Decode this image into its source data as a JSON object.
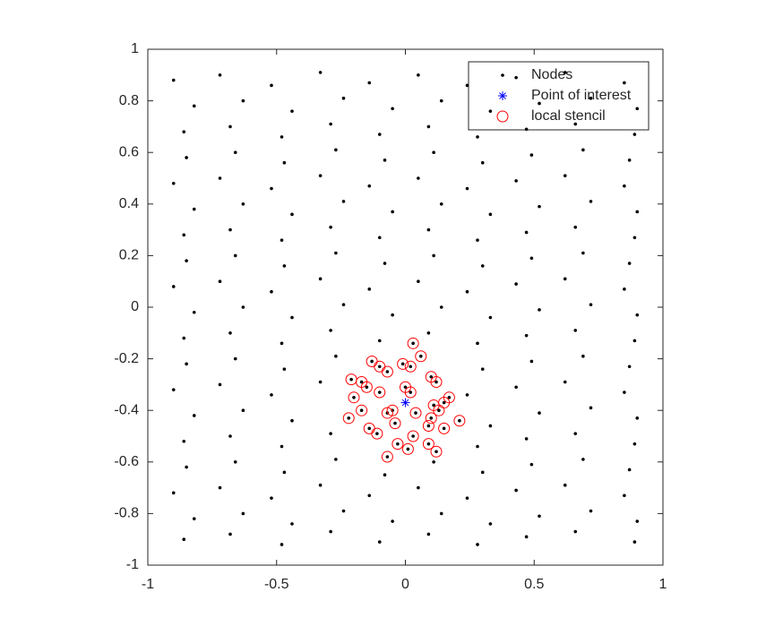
{
  "chart_data": {
    "type": "scatter",
    "xlim": [
      -1,
      1
    ],
    "xticks": [
      -1,
      -0.5,
      0,
      0.5,
      1
    ],
    "ylim": [
      -1,
      1
    ],
    "yticks": [
      -1,
      -0.8,
      -0.6,
      -0.4,
      -0.2,
      0,
      0.2,
      0.4,
      0.6,
      0.8,
      1
    ],
    "legend": "upper right",
    "series": [
      {
        "name": "Nodes",
        "color": "#000000",
        "marker": "dot",
        "x": [
          -0.9,
          -0.72,
          -0.52,
          -0.33,
          -0.14,
          0.05,
          0.24,
          0.43,
          0.62,
          0.85,
          -0.82,
          -0.63,
          -0.44,
          -0.24,
          -0.05,
          0.14,
          0.33,
          0.52,
          0.72,
          0.9,
          -0.86,
          -0.68,
          -0.48,
          -0.29,
          -0.1,
          0.09,
          0.28,
          0.47,
          0.66,
          0.89,
          -0.85,
          -0.66,
          -0.47,
          -0.27,
          -0.08,
          0.11,
          0.3,
          0.49,
          0.69,
          0.87,
          -0.9,
          -0.72,
          -0.52,
          -0.33,
          -0.14,
          0.05,
          0.24,
          0.43,
          0.62,
          0.85,
          -0.82,
          -0.63,
          -0.44,
          -0.24,
          -0.05,
          0.14,
          0.33,
          0.52,
          0.72,
          0.9,
          -0.86,
          -0.68,
          -0.48,
          -0.29,
          -0.1,
          0.09,
          0.28,
          0.47,
          0.66,
          0.89,
          -0.85,
          -0.66,
          -0.47,
          -0.27,
          -0.08,
          0.11,
          0.3,
          0.49,
          0.69,
          0.87,
          -0.9,
          -0.72,
          -0.52,
          -0.33,
          -0.14,
          0.05,
          0.24,
          0.43,
          0.62,
          0.85,
          -0.82,
          -0.63,
          -0.44,
          -0.24,
          -0.05,
          0.14,
          0.33,
          0.52,
          0.72,
          0.9,
          -0.86,
          -0.68,
          -0.48,
          -0.29,
          -0.1,
          0.09,
          0.28,
          0.47,
          0.66,
          0.89,
          -0.85,
          -0.66,
          -0.47,
          -0.27,
          0.3,
          0.49,
          0.69,
          0.87,
          -0.9,
          -0.72,
          -0.52,
          -0.33,
          0.24,
          0.43,
          0.62,
          0.85,
          -0.82,
          -0.63,
          -0.44,
          0.33,
          0.52,
          0.72,
          0.9,
          -0.86,
          -0.68,
          -0.48,
          -0.29,
          0.28,
          0.47,
          0.66,
          0.89,
          -0.85,
          -0.66,
          -0.47,
          -0.27,
          -0.08,
          0.11,
          0.3,
          0.49,
          0.69,
          0.87,
          -0.9,
          -0.72,
          -0.52,
          -0.33,
          -0.14,
          0.05,
          0.24,
          0.43,
          0.62,
          0.85,
          -0.82,
          -0.63,
          -0.44,
          -0.24,
          -0.05,
          0.14,
          0.33,
          0.52,
          0.72,
          0.9,
          -0.86,
          -0.68,
          -0.48,
          -0.29,
          -0.1,
          0.09,
          0.28,
          0.47,
          0.66,
          0.89,
          0.03,
          0.06,
          -0.13,
          -0.1,
          -0.07,
          -0.01,
          0.02,
          -0.21,
          -0.17,
          -0.15,
          0.1,
          0.12,
          0,
          0.02,
          -0.1,
          -0.2,
          0.17,
          0.15,
          0.11,
          0.13,
          -0.17,
          -0.05,
          -0.07,
          0.04,
          -0.22,
          0.1,
          0.21,
          -0.04,
          0.09,
          -0.14,
          0.15,
          -0.11,
          0.03,
          -0.03,
          0.09,
          0.01,
          0.12,
          -0.07
        ],
        "values": [
          0.88,
          0.9,
          0.86,
          0.91,
          0.87,
          0.9,
          0.86,
          0.89,
          0.91,
          0.87,
          0.78,
          0.8,
          0.76,
          0.81,
          0.77,
          0.8,
          0.76,
          0.79,
          0.81,
          0.77,
          0.68,
          0.7,
          0.66,
          0.71,
          0.67,
          0.7,
          0.66,
          0.69,
          0.71,
          0.67,
          0.58,
          0.6,
          0.56,
          0.61,
          0.57,
          0.6,
          0.56,
          0.59,
          0.61,
          0.57,
          0.48,
          0.5,
          0.46,
          0.51,
          0.47,
          0.5,
          0.46,
          0.49,
          0.51,
          0.47,
          0.38,
          0.4,
          0.36,
          0.41,
          0.37,
          0.4,
          0.36,
          0.39,
          0.41,
          0.37,
          0.28,
          0.3,
          0.26,
          0.31,
          0.27,
          0.3,
          0.26,
          0.29,
          0.31,
          0.27,
          0.18,
          0.2,
          0.16,
          0.21,
          0.17,
          0.2,
          0.16,
          0.19,
          0.21,
          0.17,
          0.08,
          0.1,
          0.06,
          0.11,
          0.07,
          0.1,
          0.06,
          0.09,
          0.11,
          0.07,
          -0.02,
          0,
          -0.04,
          0.01,
          -0.03,
          0,
          -0.04,
          -0.01,
          0.01,
          -0.03,
          -0.12,
          -0.1,
          -0.14,
          -0.09,
          -0.13,
          -0.1,
          -0.14,
          -0.11,
          -0.09,
          -0.13,
          -0.22,
          -0.2,
          -0.24,
          -0.19,
          -0.24,
          -0.21,
          -0.19,
          -0.23,
          -0.32,
          -0.3,
          -0.34,
          -0.29,
          -0.34,
          -0.31,
          -0.29,
          -0.33,
          -0.42,
          -0.4,
          -0.44,
          -0.46,
          -0.41,
          -0.39,
          -0.43,
          -0.52,
          -0.5,
          -0.54,
          -0.49,
          -0.54,
          -0.51,
          -0.49,
          -0.53,
          -0.62,
          -0.6,
          -0.64,
          -0.59,
          -0.65,
          -0.6,
          -0.64,
          -0.61,
          -0.59,
          -0.63,
          -0.72,
          -0.7,
          -0.74,
          -0.69,
          -0.73,
          -0.7,
          -0.74,
          -0.71,
          -0.69,
          -0.73,
          -0.82,
          -0.8,
          -0.84,
          -0.79,
          -0.83,
          -0.8,
          -0.84,
          -0.81,
          -0.79,
          -0.83,
          -0.9,
          -0.88,
          -0.92,
          -0.87,
          -0.91,
          -0.88,
          -0.92,
          -0.89,
          -0.87,
          -0.91,
          -0.14,
          -0.19,
          -0.21,
          -0.23,
          -0.25,
          -0.22,
          -0.23,
          -0.28,
          -0.29,
          -0.31,
          -0.27,
          -0.29,
          -0.31,
          -0.33,
          -0.33,
          -0.35,
          -0.35,
          -0.37,
          -0.38,
          -0.4,
          -0.4,
          -0.4,
          -0.41,
          -0.41,
          -0.43,
          -0.43,
          -0.44,
          -0.45,
          -0.46,
          -0.47,
          -0.47,
          -0.49,
          -0.5,
          -0.53,
          -0.53,
          -0.55,
          -0.56,
          -0.58
        ]
      },
      {
        "name": "Point of interest",
        "color": "#0000ff",
        "marker": "asterisk",
        "x": [
          0
        ],
        "values": [
          -0.37
        ]
      },
      {
        "name": "local stencil",
        "color": "#ff0000",
        "marker": "circle",
        "x": [
          0.03,
          0.06,
          -0.13,
          -0.1,
          -0.07,
          -0.01,
          0.02,
          -0.21,
          -0.17,
          -0.15,
          0.1,
          0.12,
          0,
          0.02,
          -0.1,
          -0.2,
          0.17,
          0.15,
          0.11,
          0.13,
          -0.17,
          -0.05,
          -0.07,
          0.04,
          -0.22,
          0.1,
          0.21,
          -0.04,
          0.09,
          -0.14,
          0.15,
          -0.11,
          0.03,
          -0.03,
          0.09,
          0.01,
          0.12,
          -0.07
        ],
        "values": [
          -0.14,
          -0.19,
          -0.21,
          -0.23,
          -0.25,
          -0.22,
          -0.23,
          -0.28,
          -0.29,
          -0.31,
          -0.27,
          -0.29,
          -0.31,
          -0.33,
          -0.33,
          -0.35,
          -0.35,
          -0.37,
          -0.38,
          -0.4,
          -0.4,
          -0.4,
          -0.41,
          -0.41,
          -0.43,
          -0.43,
          -0.44,
          -0.45,
          -0.46,
          -0.47,
          -0.47,
          -0.49,
          -0.5,
          -0.53,
          -0.53,
          -0.55,
          -0.56,
          -0.58
        ]
      }
    ]
  }
}
